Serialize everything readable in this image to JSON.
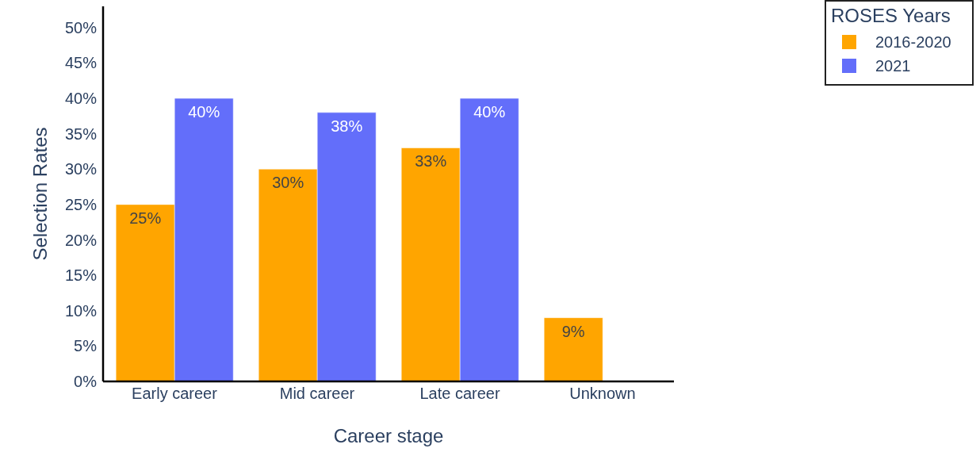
{
  "chart_data": {
    "type": "bar",
    "xlabel": "Career stage",
    "ylabel": "Selection Rates",
    "legend_title": "ROSES Years",
    "categories": [
      "Early career",
      "Mid career",
      "Late career",
      "Unknown"
    ],
    "series": [
      {
        "name": "2016-2020",
        "color": "#ffa500",
        "values": [
          25,
          30,
          33,
          9
        ],
        "value_labels": [
          "25%",
          "30%",
          "33%",
          "9%"
        ]
      },
      {
        "name": "2021",
        "color": "#636efa",
        "values": [
          40,
          38,
          40,
          null
        ],
        "value_labels": [
          "40%",
          "38%",
          "40%",
          null
        ]
      }
    ],
    "ylim": [
      0,
      53
    ],
    "yticks": [
      {
        "value": 0,
        "label": "0%"
      },
      {
        "value": 5,
        "label": "5%"
      },
      {
        "value": 10,
        "label": "10%"
      },
      {
        "value": 15,
        "label": "15%"
      },
      {
        "value": 20,
        "label": "20%"
      },
      {
        "value": 25,
        "label": "25%"
      },
      {
        "value": 30,
        "label": "30%"
      },
      {
        "value": 35,
        "label": "35%"
      },
      {
        "value": 40,
        "label": "40%"
      },
      {
        "value": 45,
        "label": "45%"
      },
      {
        "value": 50,
        "label": "50%"
      }
    ],
    "legend": "top right"
  }
}
